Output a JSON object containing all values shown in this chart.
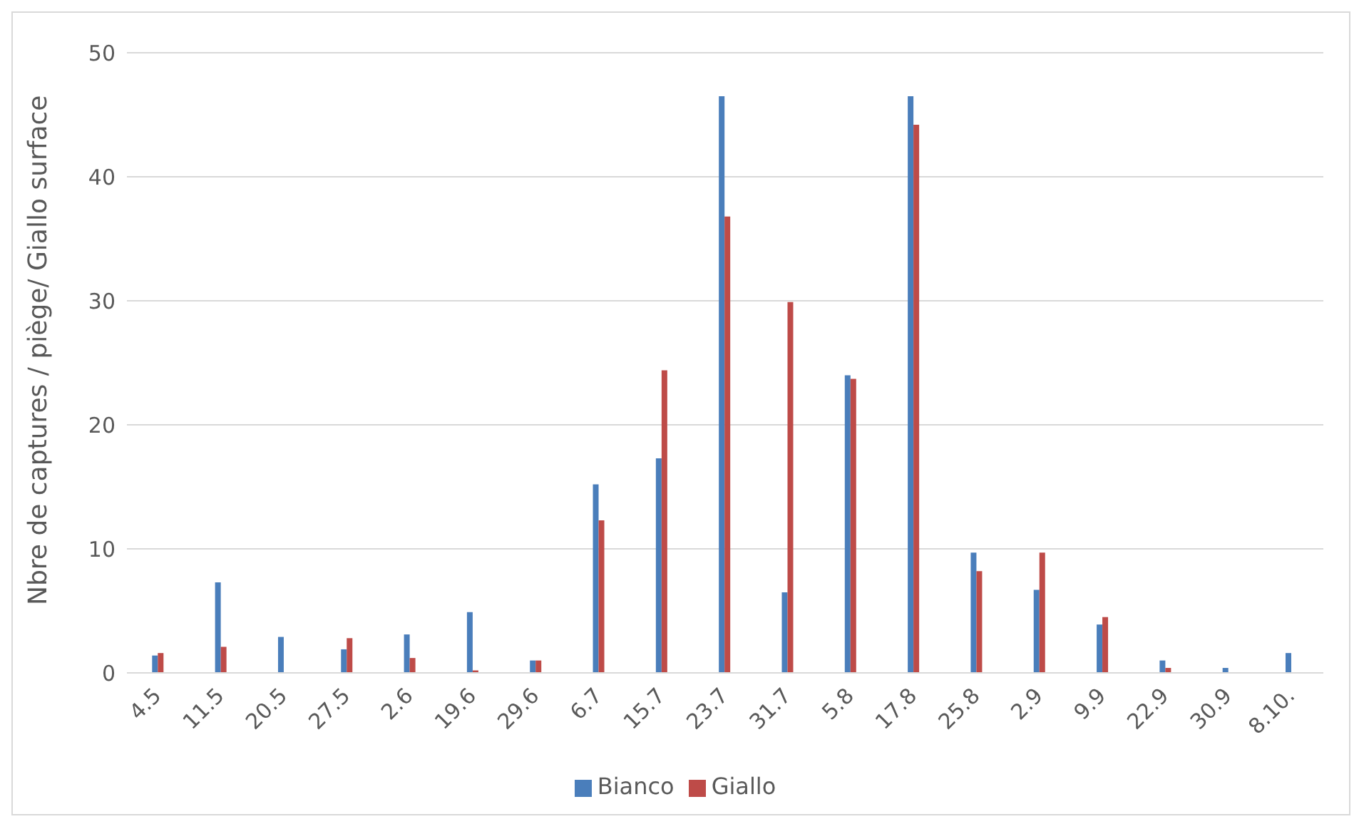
{
  "chart_data": {
    "type": "bar",
    "ylabel": "Nbre de captures / piège/ Giallo surface",
    "categories": [
      "4.5",
      "11.5",
      "20.5",
      "27.5",
      "2.6",
      "19.6",
      "29.6",
      "6.7",
      "15.7",
      "23.7",
      "31.7",
      "5.8",
      "17.8",
      "25.8",
      "2.9",
      "9.9",
      "22.9",
      "30.9",
      "8.10."
    ],
    "series": [
      {
        "name": "Bianco",
        "color": "#4a7ebb",
        "values": [
          1.4,
          7.3,
          2.9,
          1.9,
          3.1,
          4.9,
          1.0,
          15.2,
          17.3,
          46.5,
          6.5,
          24,
          46.5,
          9.7,
          6.7,
          3.9,
          1.0,
          0.4,
          1.6
        ]
      },
      {
        "name": "Giallo",
        "color": "#be4b48",
        "values": [
          1.6,
          2.1,
          0,
          2.8,
          1.2,
          0.2,
          1.0,
          12.3,
          24.4,
          36.8,
          29.9,
          23.7,
          44.2,
          8.2,
          9.7,
          4.5,
          0.4,
          0,
          0
        ]
      }
    ],
    "ylim": [
      0,
      50
    ],
    "yticks": [
      0,
      10,
      20,
      30,
      40,
      50
    ],
    "grid": "y",
    "legend": "bottom"
  }
}
